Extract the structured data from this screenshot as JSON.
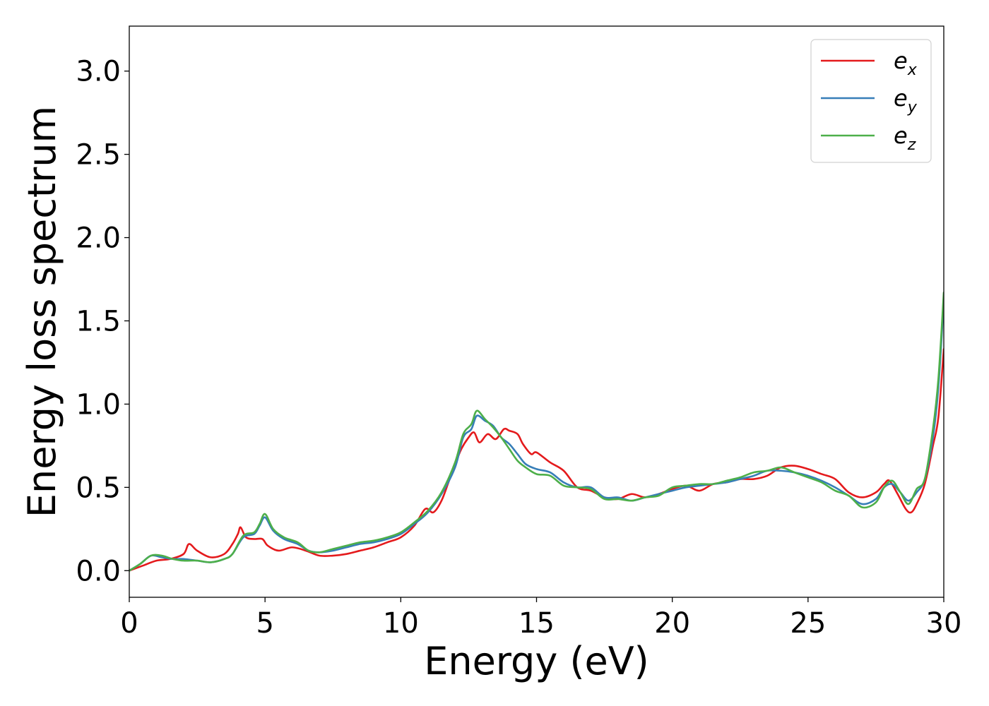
{
  "chart_data": {
    "type": "line",
    "title": "",
    "xlabel": "Energy (eV)",
    "ylabel": "Energy loss spectrum",
    "xlim": [
      0,
      30
    ],
    "ylim": [
      -0.16,
      3.27
    ],
    "xticks": [
      0,
      5,
      10,
      15,
      20,
      25,
      30
    ],
    "xtick_labels": [
      "0",
      "5",
      "10",
      "15",
      "20",
      "25",
      "30"
    ],
    "yticks": [
      0.0,
      0.5,
      1.0,
      1.5,
      2.0,
      2.5,
      3.0
    ],
    "ytick_labels": [
      "0.0",
      "0.5",
      "1.0",
      "1.5",
      "2.0",
      "2.5",
      "3.0"
    ],
    "grid": false,
    "legend_position": "top-right",
    "series": [
      {
        "name": "e_x",
        "legend_base": "e",
        "legend_sub": "x",
        "color": "#e41a1c",
        "x": [
          0,
          0.5,
          1,
          1.5,
          2,
          2.2,
          2.5,
          3,
          3.5,
          3.8,
          4,
          4.1,
          4.3,
          4.6,
          4.9,
          5.1,
          5.5,
          6,
          6.5,
          7,
          7.5,
          8,
          8.5,
          9,
          9.5,
          10,
          10.5,
          10.9,
          11.2,
          11.5,
          11.8,
          12.2,
          12.5,
          12.7,
          12.9,
          13.2,
          13.5,
          13.8,
          14,
          14.3,
          14.5,
          14.8,
          15,
          15.5,
          16,
          16.5,
          17,
          17.5,
          18,
          18.5,
          19,
          19.5,
          20,
          20.5,
          21,
          21.5,
          22,
          22.5,
          23,
          23.5,
          24,
          24.5,
          25,
          25.5,
          26,
          26.5,
          27,
          27.5,
          27.8,
          28,
          28.3,
          28.6,
          28.8,
          29,
          29.3,
          29.6,
          29.8,
          30
        ],
        "y": [
          0.0,
          0.03,
          0.06,
          0.07,
          0.1,
          0.16,
          0.12,
          0.08,
          0.1,
          0.16,
          0.22,
          0.26,
          0.2,
          0.19,
          0.19,
          0.15,
          0.12,
          0.14,
          0.12,
          0.09,
          0.09,
          0.1,
          0.12,
          0.14,
          0.17,
          0.2,
          0.27,
          0.37,
          0.35,
          0.42,
          0.55,
          0.72,
          0.8,
          0.83,
          0.77,
          0.82,
          0.79,
          0.85,
          0.84,
          0.82,
          0.76,
          0.7,
          0.71,
          0.65,
          0.6,
          0.5,
          0.48,
          0.44,
          0.43,
          0.46,
          0.44,
          0.46,
          0.49,
          0.51,
          0.48,
          0.52,
          0.53,
          0.55,
          0.55,
          0.57,
          0.62,
          0.63,
          0.61,
          0.58,
          0.55,
          0.47,
          0.44,
          0.47,
          0.52,
          0.54,
          0.46,
          0.37,
          0.35,
          0.4,
          0.52,
          0.75,
          0.92,
          1.33
        ]
      },
      {
        "name": "e_y",
        "legend_base": "e",
        "legend_sub": "y",
        "color": "#377eb8",
        "x": [
          0,
          0.4,
          0.8,
          1.2,
          1.6,
          2,
          2.5,
          3,
          3.5,
          3.8,
          4.2,
          4.6,
          4.8,
          5,
          5.3,
          5.7,
          6.2,
          6.6,
          7,
          7.5,
          8,
          8.5,
          9,
          9.5,
          10,
          10.5,
          11,
          11.5,
          12,
          12.3,
          12.6,
          12.8,
          13.1,
          13.4,
          13.7,
          14,
          14.3,
          14.6,
          15,
          15.5,
          16,
          16.5,
          17,
          17.5,
          18,
          18.5,
          19,
          19.5,
          20,
          20.5,
          21,
          21.5,
          22,
          22.5,
          23,
          23.5,
          24,
          24.5,
          25,
          25.5,
          26,
          26.5,
          27,
          27.5,
          27.8,
          28.1,
          28.4,
          28.7,
          29,
          29.3,
          29.6,
          29.8,
          30
        ],
        "y": [
          0.0,
          0.04,
          0.09,
          0.08,
          0.07,
          0.07,
          0.06,
          0.05,
          0.07,
          0.1,
          0.2,
          0.22,
          0.27,
          0.32,
          0.24,
          0.19,
          0.16,
          0.12,
          0.11,
          0.12,
          0.14,
          0.16,
          0.17,
          0.19,
          0.22,
          0.28,
          0.35,
          0.46,
          0.62,
          0.8,
          0.85,
          0.93,
          0.9,
          0.87,
          0.8,
          0.76,
          0.7,
          0.64,
          0.61,
          0.59,
          0.53,
          0.5,
          0.5,
          0.44,
          0.44,
          0.42,
          0.44,
          0.46,
          0.48,
          0.5,
          0.51,
          0.52,
          0.53,
          0.55,
          0.57,
          0.6,
          0.6,
          0.59,
          0.57,
          0.54,
          0.5,
          0.45,
          0.4,
          0.43,
          0.5,
          0.52,
          0.47,
          0.42,
          0.47,
          0.55,
          0.8,
          1.1,
          1.62
        ]
      },
      {
        "name": "e_z",
        "legend_base": "e",
        "legend_sub": "z",
        "color": "#4daf4a",
        "x": [
          0,
          0.4,
          0.8,
          1.2,
          1.6,
          2,
          2.5,
          3,
          3.5,
          3.8,
          4.2,
          4.6,
          4.8,
          5,
          5.3,
          5.7,
          6.2,
          6.6,
          7,
          7.5,
          8,
          8.5,
          9,
          9.5,
          10,
          10.5,
          11,
          11.5,
          12,
          12.3,
          12.6,
          12.8,
          13.1,
          13.4,
          13.7,
          14,
          14.3,
          14.6,
          15,
          15.5,
          16,
          16.5,
          17,
          17.5,
          18,
          18.5,
          19,
          19.5,
          20,
          20.5,
          21,
          21.5,
          22,
          22.5,
          23,
          23.5,
          24,
          24.5,
          25,
          25.5,
          26,
          26.5,
          27,
          27.5,
          27.8,
          28.1,
          28.4,
          28.7,
          29,
          29.3,
          29.6,
          29.8,
          30
        ],
        "y": [
          0.0,
          0.04,
          0.09,
          0.09,
          0.07,
          0.06,
          0.06,
          0.05,
          0.07,
          0.1,
          0.21,
          0.23,
          0.28,
          0.34,
          0.25,
          0.2,
          0.17,
          0.12,
          0.11,
          0.13,
          0.15,
          0.17,
          0.18,
          0.2,
          0.23,
          0.29,
          0.36,
          0.47,
          0.65,
          0.82,
          0.88,
          0.96,
          0.91,
          0.86,
          0.8,
          0.73,
          0.66,
          0.62,
          0.58,
          0.57,
          0.51,
          0.5,
          0.49,
          0.43,
          0.43,
          0.42,
          0.44,
          0.45,
          0.5,
          0.51,
          0.52,
          0.52,
          0.54,
          0.56,
          0.59,
          0.6,
          0.62,
          0.59,
          0.56,
          0.53,
          0.48,
          0.45,
          0.38,
          0.41,
          0.5,
          0.54,
          0.47,
          0.4,
          0.49,
          0.55,
          0.85,
          1.15,
          1.67
        ]
      }
    ]
  }
}
